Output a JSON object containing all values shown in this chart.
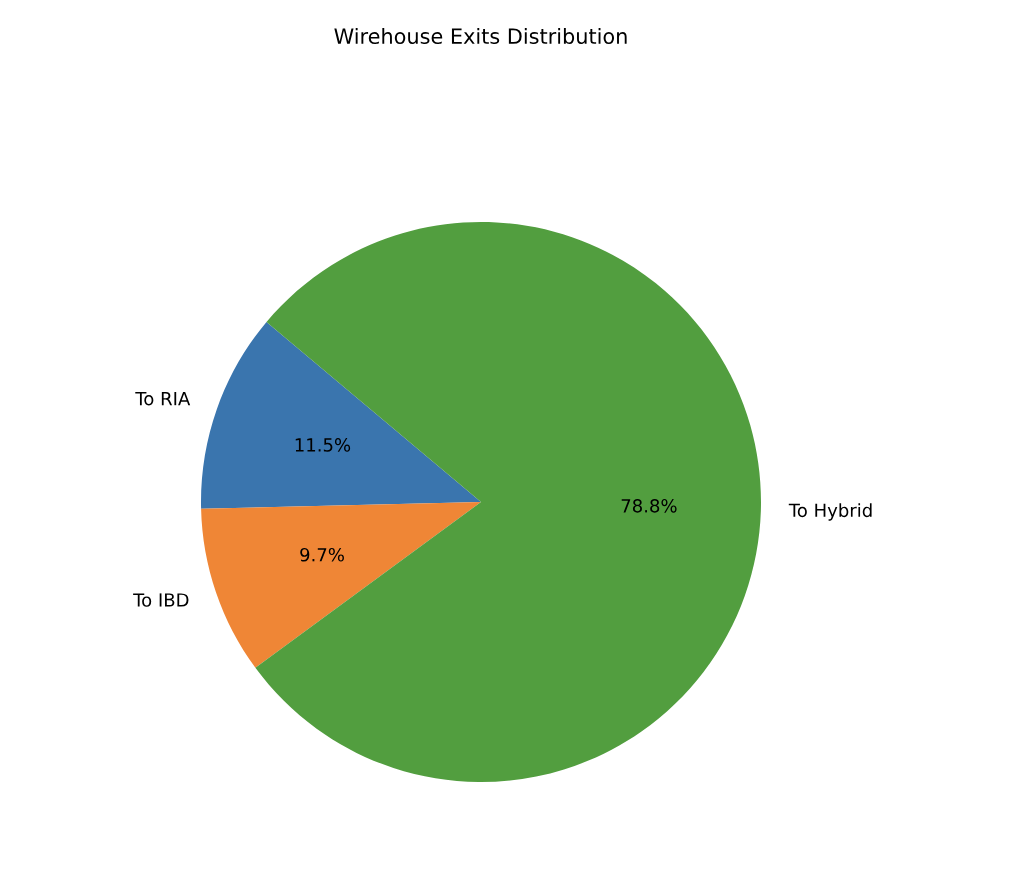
{
  "chart_data": {
    "type": "pie",
    "title": "Wirehouse Exits Distribution",
    "categories": [
      "To RIA",
      "To IBD",
      "To Hybrid"
    ],
    "values": [
      11.5,
      9.7,
      78.8
    ],
    "value_labels": [
      "11.5%",
      "9.7%",
      "78.8%"
    ],
    "colors": [
      "#3a75ae",
      "#ef8636",
      "#529e3f"
    ]
  }
}
